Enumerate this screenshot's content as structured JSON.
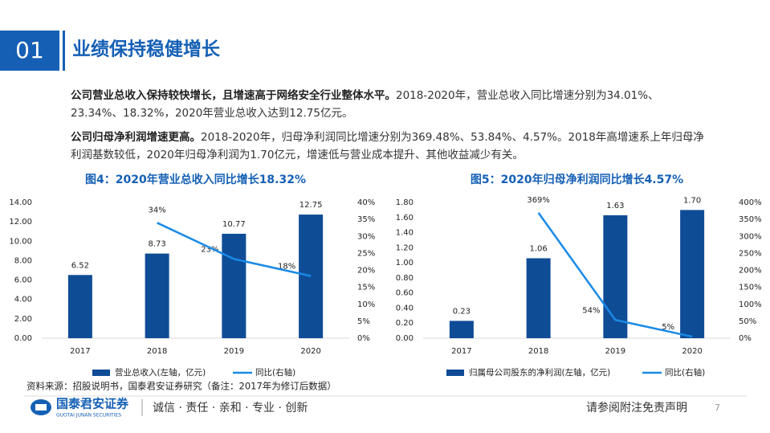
{
  "header": {
    "number": "01",
    "title": "业绩保持稳健增长"
  },
  "paragraphs": [
    {
      "bold": "公司营业总收入保持较快增长，且增速高于网络安全行业整体水平。",
      "text": "2018-2020年，营业总收入同比增速分别为34.01%、23.34%、18.32%，2020年营业总收入达到12.75亿元。"
    },
    {
      "bold": "公司归母净利润增速更高。",
      "text": "2018-2020年，归母净利润同比增速分别为369.48%、53.84%、4.57%。2018年高增速系上年归母净利润基数较低，2020年归母净利润为1.70亿元，增速低与营业成本提升、其他收益减少有关。"
    }
  ],
  "chart_data": [
    {
      "type": "bar",
      "title": "图4：2020年营业总收入同比增长18.32%",
      "categories": [
        "2017",
        "2018",
        "2019",
        "2020"
      ],
      "series": [
        {
          "name": "营业总收入(左轴，亿元)",
          "type": "bar",
          "color": "#0f4c96",
          "values": [
            6.52,
            8.73,
            10.77,
            12.75
          ],
          "value_labels": [
            "6.52",
            "8.73",
            "10.77",
            "12.75"
          ]
        },
        {
          "name": "同比(右轴)",
          "type": "line",
          "axis": "y2",
          "color": "#1a8ae6",
          "values": [
            null,
            34.01,
            23.34,
            18.32
          ],
          "value_labels": [
            null,
            "34%",
            "23%",
            "18%"
          ]
        }
      ],
      "ylim": [
        0,
        14
      ],
      "yticks": [
        {
          "value": 0,
          "label": "0.00"
        },
        {
          "value": 2,
          "label": "2.00"
        },
        {
          "value": 4,
          "label": "4.00"
        },
        {
          "value": 6,
          "label": "6.00"
        },
        {
          "value": 8,
          "label": "8.00"
        },
        {
          "value": 10,
          "label": "10.00"
        },
        {
          "value": 12,
          "label": "12.00"
        },
        {
          "value": 14,
          "label": "14.00"
        }
      ],
      "y2lim": [
        0,
        40
      ],
      "y2ticks": [
        {
          "value": 0,
          "label": "0%"
        },
        {
          "value": 5,
          "label": "5%"
        },
        {
          "value": 10,
          "label": "10%"
        },
        {
          "value": 15,
          "label": "15%"
        },
        {
          "value": 20,
          "label": "20%"
        },
        {
          "value": 25,
          "label": "25%"
        },
        {
          "value": 30,
          "label": "30%"
        },
        {
          "value": 35,
          "label": "35%"
        },
        {
          "value": 40,
          "label": "40%"
        }
      ],
      "grid": false,
      "legend": "bottom"
    },
    {
      "type": "bar",
      "title": "图5：2020年归母净利润同比增长4.57%",
      "categories": [
        "2017",
        "2018",
        "2019",
        "2020"
      ],
      "series": [
        {
          "name": "归属母公司股东的净利润(左轴，亿元)",
          "type": "bar",
          "color": "#0f4c96",
          "values": [
            0.23,
            1.06,
            1.63,
            1.7
          ],
          "value_labels": [
            "0.23",
            "1.06",
            "1.63",
            "1.70"
          ]
        },
        {
          "name": "同比(右轴)",
          "type": "line",
          "axis": "y2",
          "color": "#1a8ae6",
          "values": [
            null,
            369.48,
            53.84,
            4.57
          ],
          "value_labels": [
            null,
            "369%",
            "54%",
            "5%"
          ]
        }
      ],
      "ylim": [
        0,
        1.8
      ],
      "yticks": [
        {
          "value": 0,
          "label": "0.00"
        },
        {
          "value": 0.2,
          "label": "0.20"
        },
        {
          "value": 0.4,
          "label": "0.40"
        },
        {
          "value": 0.6,
          "label": "0.60"
        },
        {
          "value": 0.8,
          "label": "0.80"
        },
        {
          "value": 1.0,
          "label": "1.00"
        },
        {
          "value": 1.2,
          "label": "1.20"
        },
        {
          "value": 1.4,
          "label": "1.40"
        },
        {
          "value": 1.6,
          "label": "1.60"
        },
        {
          "value": 1.8,
          "label": "1.80"
        }
      ],
      "y2lim": [
        0,
        400
      ],
      "y2ticks": [
        {
          "value": 0,
          "label": "0%"
        },
        {
          "value": 50,
          "label": "50%"
        },
        {
          "value": 100,
          "label": "100%"
        },
        {
          "value": 150,
          "label": "150%"
        },
        {
          "value": 200,
          "label": "200%"
        },
        {
          "value": 250,
          "label": "250%"
        },
        {
          "value": 300,
          "label": "300%"
        },
        {
          "value": 350,
          "label": "350%"
        },
        {
          "value": 400,
          "label": "400%"
        }
      ],
      "grid": false,
      "legend": "bottom"
    }
  ],
  "source": "资料来源：招股说明书，国泰君安证券研究（备注：2017年为修订后数据）",
  "footer": {
    "logo": "国泰君安证券",
    "logo_en": "GUOTAI JUNAN SECURITIES",
    "slogan": "诚信 · 责任 · 亲和 · 专业 · 创新",
    "disclaimer": "请参阅附注免责声明",
    "page": "7"
  }
}
